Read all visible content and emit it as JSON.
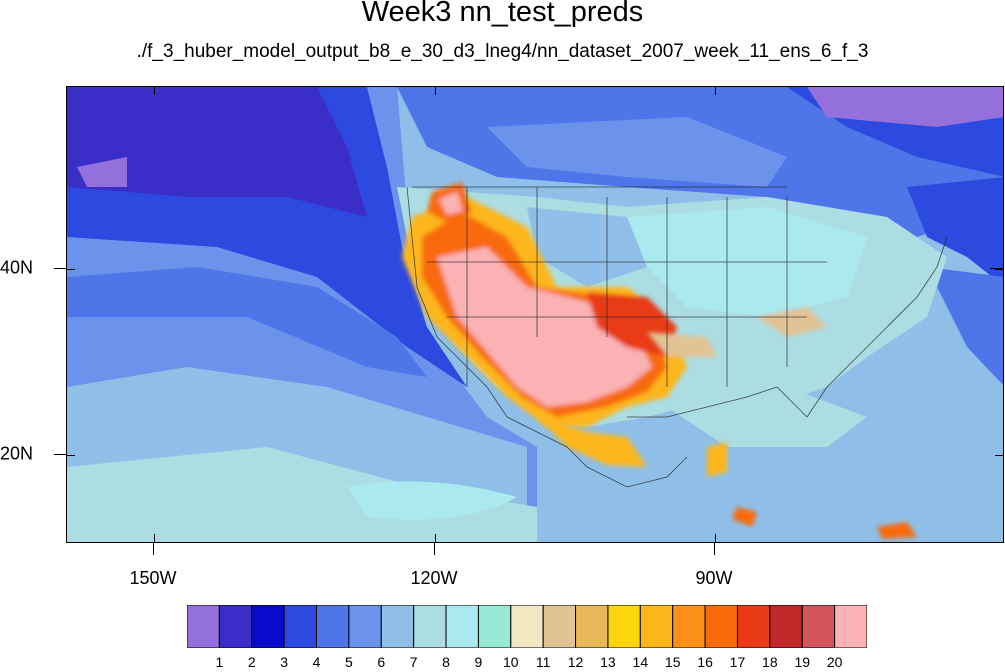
{
  "title": "Week3 nn_test_preds",
  "subtitle": "./f_3_huber_model_output_b8_e_30_d3_lneg4/nn_dataset_2007_week_11_ens_6_f_3",
  "lon_labels": [
    "150W",
    "120W",
    "90W"
  ],
  "lat_labels": [
    "40N",
    "20N"
  ],
  "colorbar": {
    "colors": [
      "#9370db",
      "#3a2dc8",
      "#0a0acb",
      "#2d4ae0",
      "#4f76e8",
      "#6b93ec",
      "#8fbfe8",
      "#abdde3",
      "#a9e9ef",
      "#97e8d5",
      "#f3e6c3",
      "#e2c395",
      "#e9b85a",
      "#fcd60c",
      "#fdb61a",
      "#fb8f18",
      "#f86a0a",
      "#e83a16",
      "#c0282a",
      "#d2555c",
      "#fab2b4"
    ],
    "labels": [
      "1",
      "2",
      "3",
      "4",
      "5",
      "6",
      "7",
      "8",
      "9",
      "10",
      "11",
      "12",
      "13",
      "14",
      "15",
      "16",
      "17",
      "18",
      "19",
      "20"
    ]
  }
}
